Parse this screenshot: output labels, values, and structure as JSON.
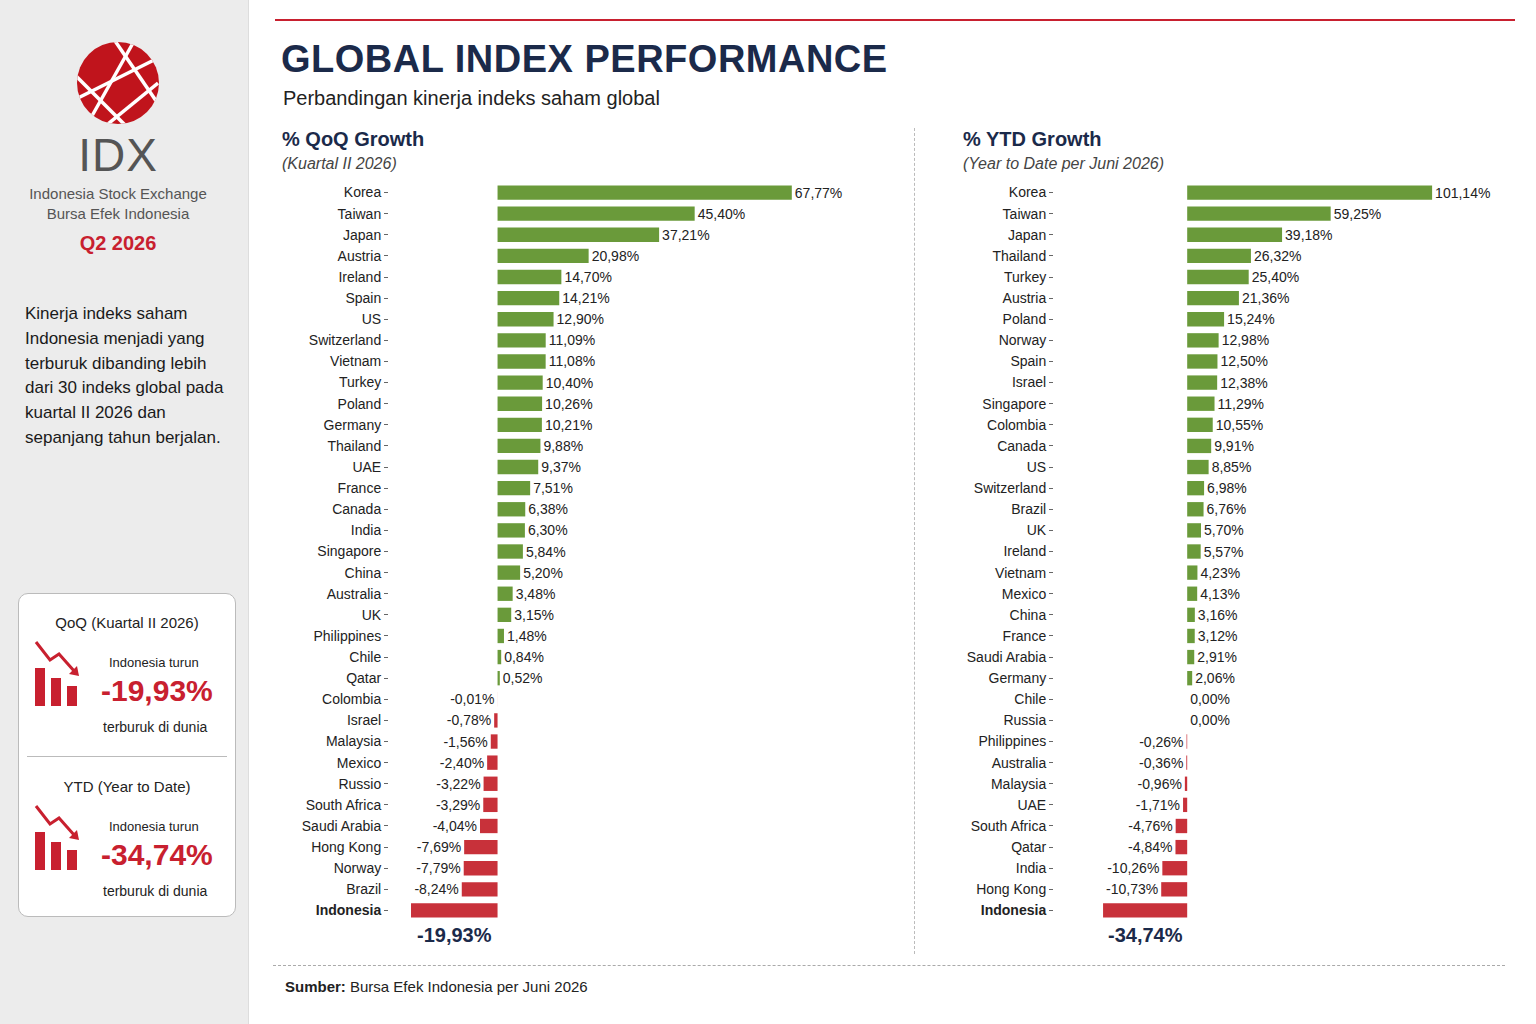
{
  "header": {
    "title": "GLOBAL INDEX PERFORMANCE",
    "subtitle": "Perbandingan kinerja indeks saham global"
  },
  "sidebar": {
    "logo_text": "IDX",
    "org": [
      "Indonesia Stock Exchange",
      "Bursa Efek Indonesia"
    ],
    "period": "Q2 2026",
    "summary": "Kinerja indeks saham Indonesia menjadi yang terburuk dibanding lebih dari 30 indeks global pada kuartal II 2026 dan sepanjang tahun berjalan.",
    "cards": [
      {
        "title": "QoQ (Kuartal II 2026)",
        "line1": "Indonesia turun",
        "value": "-19,93%",
        "line2": "terburuk di dunia"
      },
      {
        "title": "YTD (Year to Date)",
        "line1": "Indonesia turun",
        "value": "-34,74%",
        "line2": "terburuk di dunia"
      }
    ]
  },
  "chart_data": [
    {
      "type": "bar",
      "title": "% QoQ Growth",
      "subtitle": "(Kuartal II 2026)",
      "orientation": "horizontal",
      "data_labels": true,
      "tick_labels": "y",
      "xlim": [
        -25,
        92
      ],
      "categories": [
        "Korea",
        "Taiwan",
        "Japan",
        "Austria",
        "Ireland",
        "Spain",
        "US",
        "Switzerland",
        "Vietnam",
        "Turkey",
        "Poland",
        "Germany",
        "Thailand",
        "UAE",
        "France",
        "Canada",
        "India",
        "Singapore",
        "China",
        "Australia",
        "UK",
        "Philippines",
        "Chile",
        "Qatar",
        "Colombia",
        "Israel",
        "Malaysia",
        "Mexico",
        "Russio",
        "South Africa",
        "Saudi Arabia",
        "Hong Kong",
        "Norway",
        "Brazil",
        "Indonesia"
      ],
      "values": [
        67.77,
        45.4,
        37.21,
        20.98,
        14.7,
        14.21,
        12.9,
        11.09,
        11.08,
        10.4,
        10.26,
        10.21,
        9.88,
        9.37,
        7.51,
        6.38,
        6.3,
        5.84,
        5.2,
        3.48,
        3.15,
        1.48,
        0.84,
        0.52,
        -0.01,
        -0.78,
        -1.56,
        -2.4,
        -3.22,
        -3.29,
        -4.04,
        -7.69,
        -7.79,
        -8.24,
        -19.93
      ],
      "value_labels": [
        "67,77%",
        "45,40%",
        "37,21%",
        "20,98%",
        "14,70%",
        "14,21%",
        "12,90%",
        "11,09%",
        "11,08%",
        "10,40%",
        "10,26%",
        "10,21%",
        "9,88%",
        "9,37%",
        "7,51%",
        "6,38%",
        "6,30%",
        "5,84%",
        "5,20%",
        "3,48%",
        "3,15%",
        "1,48%",
        "0,84%",
        "0,52%",
        "-0,01%",
        "-0,78%",
        "-1,56%",
        "-2,40%",
        "-3,22%",
        "-3,29%",
        "-4,04%",
        "-7,69%",
        "-7,79%",
        "-8,24%",
        "-19,93%"
      ],
      "colors": [
        "#6a9a3a",
        "#6a9a3a",
        "#6a9a3a",
        "#6a9a3a",
        "#6a9a3a",
        "#6a9a3a",
        "#6a9a3a",
        "#6a9a3a",
        "#6a9a3a",
        "#6a9a3a",
        "#6a9a3a",
        "#6a9a3a",
        "#6a9a3a",
        "#6a9a3a",
        "#6a9a3a",
        "#6a9a3a",
        "#6a9a3a",
        "#6a9a3a",
        "#6a9a3a",
        "#6a9a3a",
        "#6a9a3a",
        "#6a9a3a",
        "#6a9a3a",
        "#6a9a3a",
        "#c8313a",
        "#c8313a",
        "#c8313a",
        "#c8313a",
        "#c8313a",
        "#c8313a",
        "#c8313a",
        "#c8313a",
        "#c8313a",
        "#c8313a",
        "#c8313a"
      ]
    },
    {
      "type": "bar",
      "title": "% YTD Growth",
      "subtitle": "(Year to Date per Juni 2026)",
      "orientation": "horizontal",
      "data_labels": true,
      "tick_labels": "y",
      "xlim": [
        -55,
        130
      ],
      "categories": [
        "Korea",
        "Taiwan",
        "Japan",
        "Thailand",
        "Turkey",
        "Austria",
        "Poland",
        "Norway",
        "Spain",
        "Israel",
        "Singapore",
        "Colombia",
        "Canada",
        "US",
        "Switzerland",
        "Brazil",
        "UK",
        "Ireland",
        "Vietnam",
        "Mexico",
        "China",
        "France",
        "Saudi Arabia",
        "Germany",
        "Chile",
        "Russia",
        "Philippines",
        "Australia",
        "Malaysia",
        "UAE",
        "South Africa",
        "Qatar",
        "India",
        "Hong Kong",
        "Indonesia"
      ],
      "values": [
        101.14,
        59.25,
        39.18,
        26.32,
        25.4,
        21.36,
        15.24,
        12.98,
        12.5,
        12.38,
        11.29,
        10.55,
        9.91,
        8.85,
        6.98,
        6.76,
        5.7,
        5.57,
        4.23,
        4.13,
        3.16,
        3.12,
        2.91,
        2.06,
        0.0,
        0.0,
        -0.26,
        -0.36,
        -0.96,
        -1.71,
        -4.76,
        -4.84,
        -10.26,
        -10.73,
        -34.74
      ],
      "value_labels": [
        "101,14%",
        "59,25%",
        "39,18%",
        "26,32%",
        "25,40%",
        "21,36%",
        "15,24%",
        "12,98%",
        "12,50%",
        "12,38%",
        "11,29%",
        "10,55%",
        "9,91%",
        "8,85%",
        "6,98%",
        "6,76%",
        "5,70%",
        "5,57%",
        "4,23%",
        "4,13%",
        "3,16%",
        "3,12%",
        "2,91%",
        "2,06%",
        "0,00%",
        "0,00%",
        "-0,26%",
        "-0,36%",
        "-0,96%",
        "-1,71%",
        "-4,76%",
        "-4,84%",
        "-10,26%",
        "-10,73%",
        "-34,74%"
      ],
      "colors": [
        "#6a9a3a",
        "#6a9a3a",
        "#6a9a3a",
        "#6a9a3a",
        "#6a9a3a",
        "#6a9a3a",
        "#6a9a3a",
        "#6a9a3a",
        "#6a9a3a",
        "#6a9a3a",
        "#6a9a3a",
        "#6a9a3a",
        "#6a9a3a",
        "#6a9a3a",
        "#6a9a3a",
        "#6a9a3a",
        "#6a9a3a",
        "#6a9a3a",
        "#6a9a3a",
        "#6a9a3a",
        "#6a9a3a",
        "#6a9a3a",
        "#6a9a3a",
        "#6a9a3a",
        "#6a9a3a",
        "#6a9a3a",
        "#c8313a",
        "#c8313a",
        "#c8313a",
        "#c8313a",
        "#c8313a",
        "#c8313a",
        "#c8313a",
        "#c8313a",
        "#c8313a"
      ]
    }
  ],
  "source": {
    "label": "Sumber:",
    "text": "Bursa Efek Indonesia per Juni 2026"
  }
}
